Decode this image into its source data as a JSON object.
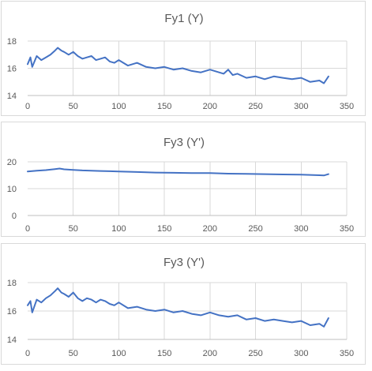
{
  "chart_data": [
    {
      "type": "line",
      "title": "Fy1 (Y)",
      "xlim": [
        0,
        350
      ],
      "ylim": [
        14,
        18
      ],
      "x_ticks": [
        0,
        50,
        100,
        150,
        200,
        250,
        300,
        350
      ],
      "y_ticks": [
        14,
        16,
        18
      ],
      "grid": true,
      "legend": "none",
      "color": "#4472c4",
      "series": [
        {
          "x": [
            0,
            3,
            5,
            10,
            15,
            20,
            25,
            30,
            33,
            37,
            40,
            45,
            50,
            55,
            60,
            65,
            70,
            75,
            80,
            85,
            90,
            95,
            100,
            110,
            120,
            130,
            140,
            150,
            160,
            170,
            180,
            190,
            200,
            210,
            215,
            220,
            225,
            230,
            240,
            250,
            260,
            270,
            280,
            290,
            300,
            310,
            320,
            325,
            330
          ],
          "y": [
            16.3,
            16.8,
            16.1,
            16.9,
            16.6,
            16.8,
            17.0,
            17.3,
            17.5,
            17.3,
            17.2,
            17.0,
            17.2,
            16.9,
            16.7,
            16.8,
            16.9,
            16.6,
            16.7,
            16.8,
            16.5,
            16.4,
            16.6,
            16.2,
            16.4,
            16.1,
            16.0,
            16.1,
            15.9,
            16.0,
            15.8,
            15.7,
            15.9,
            15.7,
            15.6,
            15.9,
            15.5,
            15.6,
            15.3,
            15.4,
            15.2,
            15.4,
            15.3,
            15.2,
            15.3,
            15.0,
            15.1,
            14.9,
            15.4
          ]
        }
      ]
    },
    {
      "type": "line",
      "title": "Fy3 (Y')",
      "xlim": [
        0,
        350
      ],
      "ylim": [
        0,
        20
      ],
      "x_ticks": [
        0,
        50,
        100,
        150,
        200,
        250,
        300,
        350
      ],
      "y_ticks": [
        0,
        10,
        20
      ],
      "grid": true,
      "legend": "none",
      "color": "#4472c4",
      "series": [
        {
          "x": [
            0,
            10,
            20,
            30,
            35,
            40,
            50,
            60,
            70,
            80,
            90,
            100,
            120,
            140,
            160,
            180,
            200,
            220,
            240,
            260,
            280,
            300,
            320,
            325,
            330
          ],
          "y": [
            16.4,
            16.7,
            16.9,
            17.3,
            17.5,
            17.2,
            17.0,
            16.8,
            16.7,
            16.6,
            16.5,
            16.4,
            16.2,
            16.0,
            15.9,
            15.8,
            15.8,
            15.6,
            15.5,
            15.4,
            15.3,
            15.2,
            15.0,
            14.9,
            15.4
          ]
        }
      ]
    },
    {
      "type": "line",
      "title": "Fy3 (Y')",
      "xlim": [
        0,
        350
      ],
      "ylim": [
        14,
        18
      ],
      "x_ticks": [
        0,
        50,
        100,
        150,
        200,
        250,
        300,
        350
      ],
      "y_ticks": [
        14,
        16,
        18
      ],
      "grid": true,
      "legend": "none",
      "color": "#4472c4",
      "series": [
        {
          "x": [
            0,
            3,
            5,
            10,
            15,
            20,
            25,
            30,
            33,
            37,
            40,
            45,
            50,
            55,
            60,
            65,
            70,
            75,
            80,
            85,
            90,
            95,
            100,
            110,
            120,
            130,
            140,
            150,
            160,
            170,
            180,
            190,
            200,
            210,
            220,
            230,
            240,
            250,
            260,
            270,
            280,
            290,
            300,
            310,
            320,
            325,
            330
          ],
          "y": [
            16.4,
            16.7,
            15.9,
            16.8,
            16.6,
            16.9,
            17.1,
            17.4,
            17.6,
            17.3,
            17.2,
            17.0,
            17.3,
            16.9,
            16.7,
            16.9,
            16.8,
            16.6,
            16.8,
            16.7,
            16.5,
            16.4,
            16.6,
            16.2,
            16.3,
            16.1,
            16.0,
            16.1,
            15.9,
            16.0,
            15.8,
            15.7,
            15.9,
            15.7,
            15.6,
            15.7,
            15.4,
            15.5,
            15.3,
            15.4,
            15.3,
            15.2,
            15.3,
            15.0,
            15.1,
            14.9,
            15.5
          ]
        }
      ]
    }
  ]
}
